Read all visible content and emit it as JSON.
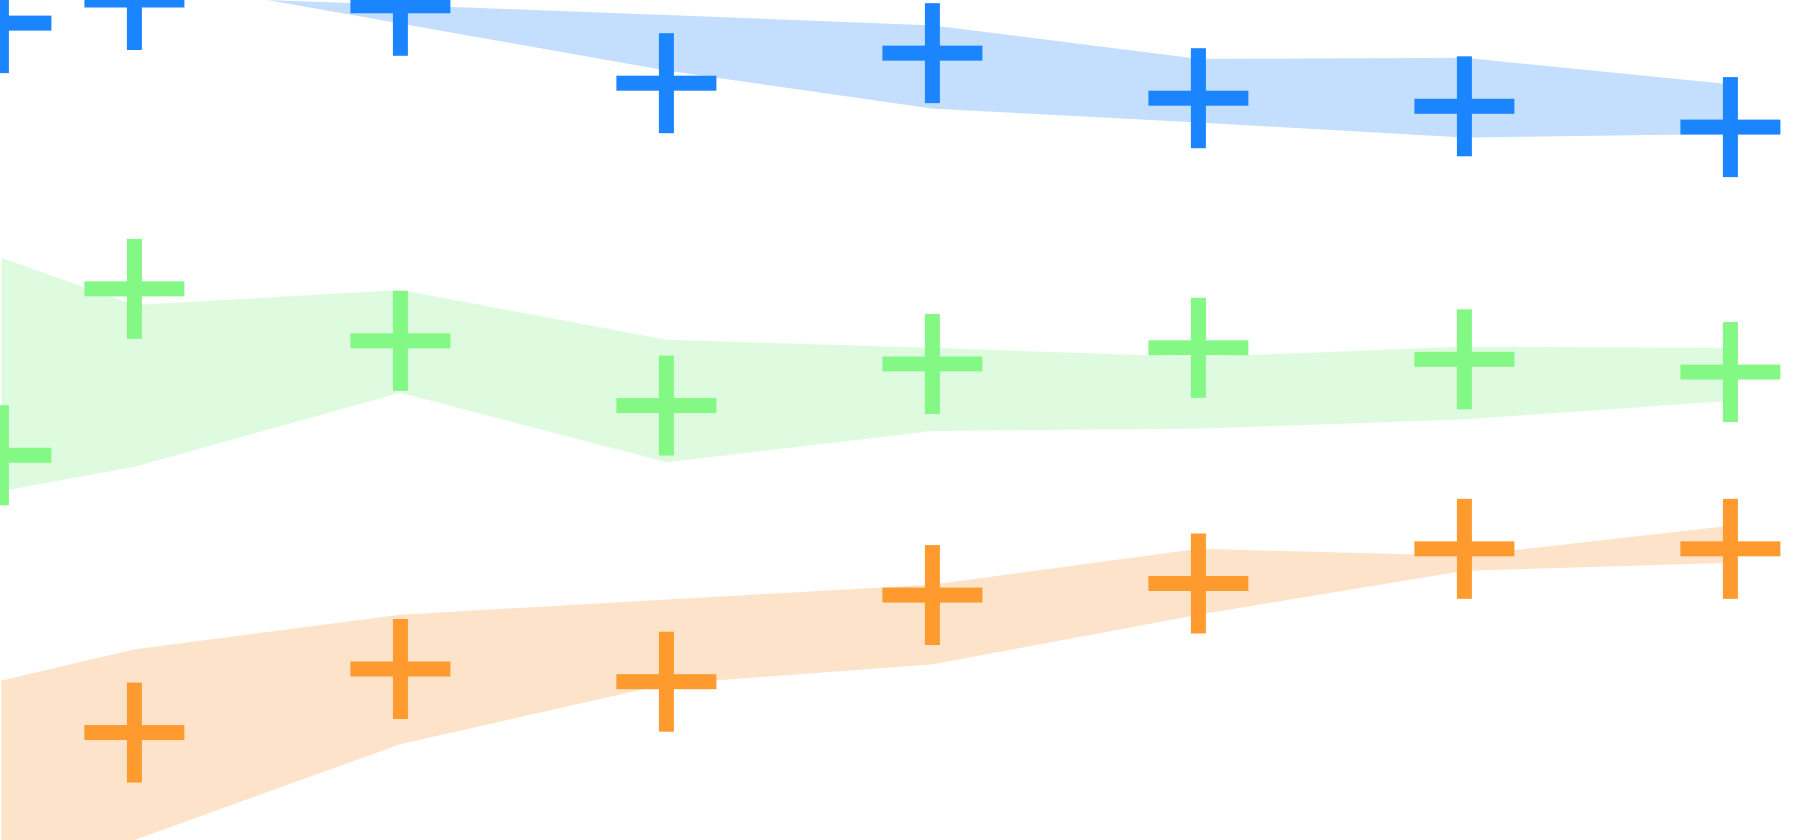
{
  "chart_data": {
    "type": "scatter",
    "title": "",
    "xlabel": "",
    "ylabel": "",
    "grid": false,
    "legend": "none",
    "x": [
      0,
      1,
      2,
      3,
      4,
      5,
      6,
      7
    ],
    "xlim": [
      -0.1,
      6.8
    ],
    "ylim": [
      0,
      727
    ],
    "series": [
      {
        "color": "#1a85ff",
        "band_color": "#c4dffd",
        "marker": "plus",
        "points": [
          {
            "x": -0.1,
            "y": 707
          },
          {
            "x": 0.4,
            "y": 727
          },
          {
            "x": 1.4,
            "y": 722
          },
          {
            "x": 2.4,
            "y": 655
          },
          {
            "x": 3.4,
            "y": 681
          },
          {
            "x": 4.4,
            "y": 642
          },
          {
            "x": 5.4,
            "y": 635
          },
          {
            "x": 6.4,
            "y": 617
          }
        ],
        "band_upper": [
          {
            "x": 0.9,
            "y": 727
          },
          {
            "x": 2.4,
            "y": 714
          },
          {
            "x": 3.4,
            "y": 705
          },
          {
            "x": 4.4,
            "y": 676
          },
          {
            "x": 5.4,
            "y": 677
          },
          {
            "x": 6.4,
            "y": 654
          }
        ],
        "band_lower": [
          {
            "x": 0.9,
            "y": 727
          },
          {
            "x": 2.4,
            "y": 666
          },
          {
            "x": 3.4,
            "y": 633
          },
          {
            "x": 4.4,
            "y": 621
          },
          {
            "x": 5.4,
            "y": 608
          },
          {
            "x": 6.4,
            "y": 611
          }
        ]
      },
      {
        "color": "#84f884",
        "band_color": "#dffbdf",
        "marker": "plus",
        "points": [
          {
            "x": -0.1,
            "y": 333
          },
          {
            "x": 0.4,
            "y": 477
          },
          {
            "x": 1.4,
            "y": 432
          },
          {
            "x": 2.4,
            "y": 376
          },
          {
            "x": 3.4,
            "y": 412
          },
          {
            "x": 4.4,
            "y": 426
          },
          {
            "x": 5.4,
            "y": 416
          },
          {
            "x": 6.4,
            "y": 405
          }
        ],
        "band_upper": [
          {
            "x": -0.1,
            "y": 504
          },
          {
            "x": 0.4,
            "y": 463
          },
          {
            "x": 1.4,
            "y": 476
          },
          {
            "x": 2.4,
            "y": 433
          },
          {
            "x": 3.4,
            "y": 426
          },
          {
            "x": 4.4,
            "y": 418
          },
          {
            "x": 5.4,
            "y": 427
          },
          {
            "x": 6.4,
            "y": 426
          }
        ],
        "band_lower": [
          {
            "x": -0.1,
            "y": 302
          },
          {
            "x": 0.4,
            "y": 323
          },
          {
            "x": 1.4,
            "y": 387
          },
          {
            "x": 2.4,
            "y": 327
          },
          {
            "x": 3.4,
            "y": 354
          },
          {
            "x": 4.4,
            "y": 356
          },
          {
            "x": 5.4,
            "y": 364
          },
          {
            "x": 6.4,
            "y": 380
          }
        ]
      },
      {
        "color": "#ff9a2e",
        "band_color": "#fde3c9",
        "marker": "plus",
        "points": [
          {
            "x": 0.4,
            "y": 93
          },
          {
            "x": 1.4,
            "y": 148
          },
          {
            "x": 2.4,
            "y": 137
          },
          {
            "x": 3.4,
            "y": 212
          },
          {
            "x": 4.4,
            "y": 222
          },
          {
            "x": 5.4,
            "y": 252
          },
          {
            "x": 6.4,
            "y": 252
          }
        ],
        "band_upper": [
          {
            "x": -0.1,
            "y": 138
          },
          {
            "x": 0.4,
            "y": 165
          },
          {
            "x": 1.4,
            "y": 195
          },
          {
            "x": 3.4,
            "y": 221
          },
          {
            "x": 4.4,
            "y": 252
          },
          {
            "x": 5.4,
            "y": 246
          },
          {
            "x": 6.4,
            "y": 272
          }
        ],
        "band_lower": [
          {
            "x": -0.1,
            "y": 0
          },
          {
            "x": 0.4,
            "y": 0
          },
          {
            "x": 1.4,
            "y": 83
          },
          {
            "x": 2.4,
            "y": 135
          },
          {
            "x": 3.4,
            "y": 152
          },
          {
            "x": 4.4,
            "y": 195
          },
          {
            "x": 5.4,
            "y": 233
          },
          {
            "x": 6.4,
            "y": 240
          }
        ]
      }
    ]
  }
}
